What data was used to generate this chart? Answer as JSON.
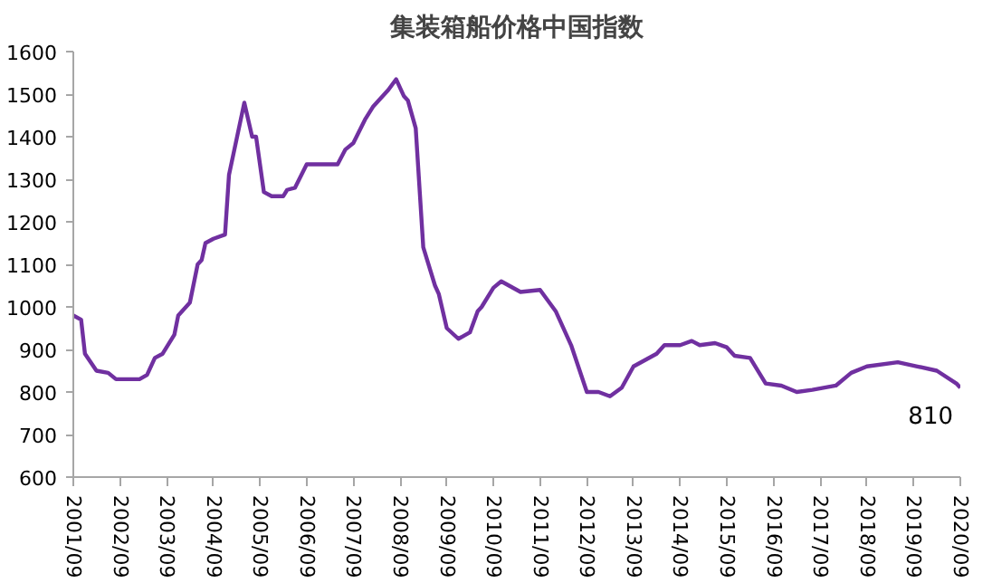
{
  "chart_data": {
    "type": "line",
    "title": "集装箱船价格中国指数",
    "x": [
      "2001-09",
      "2001-11",
      "2001-12",
      "2002-03",
      "2002-06",
      "2002-08",
      "2003-02",
      "2003-04",
      "2003-06",
      "2003-08",
      "2003-11",
      "2003-12",
      "2004-03",
      "2004-05",
      "2004-06",
      "2004-07",
      "2004-09",
      "2004-12",
      "2005-01",
      "2005-05",
      "2005-07",
      "2005-08",
      "2005-10",
      "2005-12",
      "2006-03",
      "2006-04",
      "2006-06",
      "2006-09",
      "2007-05",
      "2007-07",
      "2007-09",
      "2007-12",
      "2008-02",
      "2008-06",
      "2008-08",
      "2008-10",
      "2008-11",
      "2009-01",
      "2009-03",
      "2009-06",
      "2009-07",
      "2009-09",
      "2009-12",
      "2010-03",
      "2010-05",
      "2010-06",
      "2010-09",
      "2010-11",
      "2011-04",
      "2011-09",
      "2012-01",
      "2012-05",
      "2012-09",
      "2012-12",
      "2013-03",
      "2013-06",
      "2013-09",
      "2014-03",
      "2014-05",
      "2014-09",
      "2014-12",
      "2015-02",
      "2015-06",
      "2015-09",
      "2015-11",
      "2016-03",
      "2016-07",
      "2016-11",
      "2017-03",
      "2017-07",
      "2018-01",
      "2018-05",
      "2018-09",
      "2019-05",
      "2019-10",
      "2020-03",
      "2020-08",
      "2020-09"
    ],
    "series": [
      {
        "color": "#7030a0",
        "values": [
          980,
          970,
          890,
          850,
          845,
          830,
          830,
          840,
          880,
          890,
          935,
          980,
          1010,
          1100,
          1110,
          1150,
          1160,
          1170,
          1310,
          1480,
          1400,
          1400,
          1270,
          1260,
          1260,
          1275,
          1280,
          1335,
          1335,
          1370,
          1385,
          1440,
          1470,
          1510,
          1535,
          1495,
          1485,
          1420,
          1140,
          1050,
          1030,
          950,
          925,
          940,
          990,
          1000,
          1045,
          1060,
          1035,
          1040,
          990,
          910,
          800,
          800,
          790,
          810,
          860,
          890,
          910,
          910,
          920,
          910,
          915,
          905,
          885,
          880,
          820,
          815,
          800,
          805,
          815,
          845,
          860,
          870,
          860,
          850,
          820,
          810
        ]
      }
    ],
    "xlim": [
      "2001-09",
      "2020-09"
    ],
    "xticks": [
      {
        "value": "2001-09",
        "label": "2001/09"
      },
      {
        "value": "2002-09",
        "label": "2002/09"
      },
      {
        "value": "2003-09",
        "label": "2003/09"
      },
      {
        "value": "2004-09",
        "label": "2004/09"
      },
      {
        "value": "2005-09",
        "label": "2005/09"
      },
      {
        "value": "2006-09",
        "label": "2006/09"
      },
      {
        "value": "2007-09",
        "label": "2007/09"
      },
      {
        "value": "2008-09",
        "label": "2008/09"
      },
      {
        "value": "2009-09",
        "label": "2009/09"
      },
      {
        "value": "2010-09",
        "label": "2010/09"
      },
      {
        "value": "2011-09",
        "label": "2011/09"
      },
      {
        "value": "2012-09",
        "label": "2012/09"
      },
      {
        "value": "2013-09",
        "label": "2013/09"
      },
      {
        "value": "2014-09",
        "label": "2014/09"
      },
      {
        "value": "2015-09",
        "label": "2015/09"
      },
      {
        "value": "2016-09",
        "label": "2016/09"
      },
      {
        "value": "2017-09",
        "label": "2017/09"
      },
      {
        "value": "2018-09",
        "label": "2018/09"
      },
      {
        "value": "2019-09",
        "label": "2019/09"
      },
      {
        "value": "2020-09",
        "label": "2020/09"
      }
    ],
    "ylim": [
      600,
      1600
    ],
    "yticks": [
      600,
      700,
      800,
      900,
      1000,
      1100,
      1200,
      1300,
      1400,
      1500,
      1600
    ],
    "annotations": [
      {
        "text": "810",
        "x": "2020-09",
        "y": 810
      }
    ],
    "grid": false,
    "marker": "none",
    "line_style": "solid"
  }
}
